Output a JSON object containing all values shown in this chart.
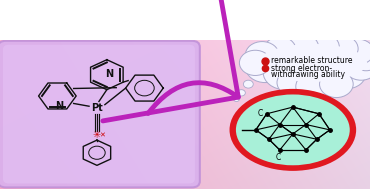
{
  "figsize": [
    3.74,
    1.89
  ],
  "dpi": 100,
  "bg_left_color": "#f5a8c8",
  "bg_right_color": "#e8d0f0",
  "left_box_fill": "#d8b0ee",
  "left_box_edge": "#c090d8",
  "cloud_fill": "#f5f5ff",
  "cloud_edge": "#aaaacc",
  "circle_fill": "#a8f0d8",
  "circle_edge": "#e01820",
  "arrow_color": "#bb22bb",
  "bullet_color": "#cc1111",
  "text1": "remarkable structure",
  "text2": "strong electron-",
  "text3": "withdrawing ability",
  "mol_line_color": "#111111",
  "pt_color": "#111111"
}
